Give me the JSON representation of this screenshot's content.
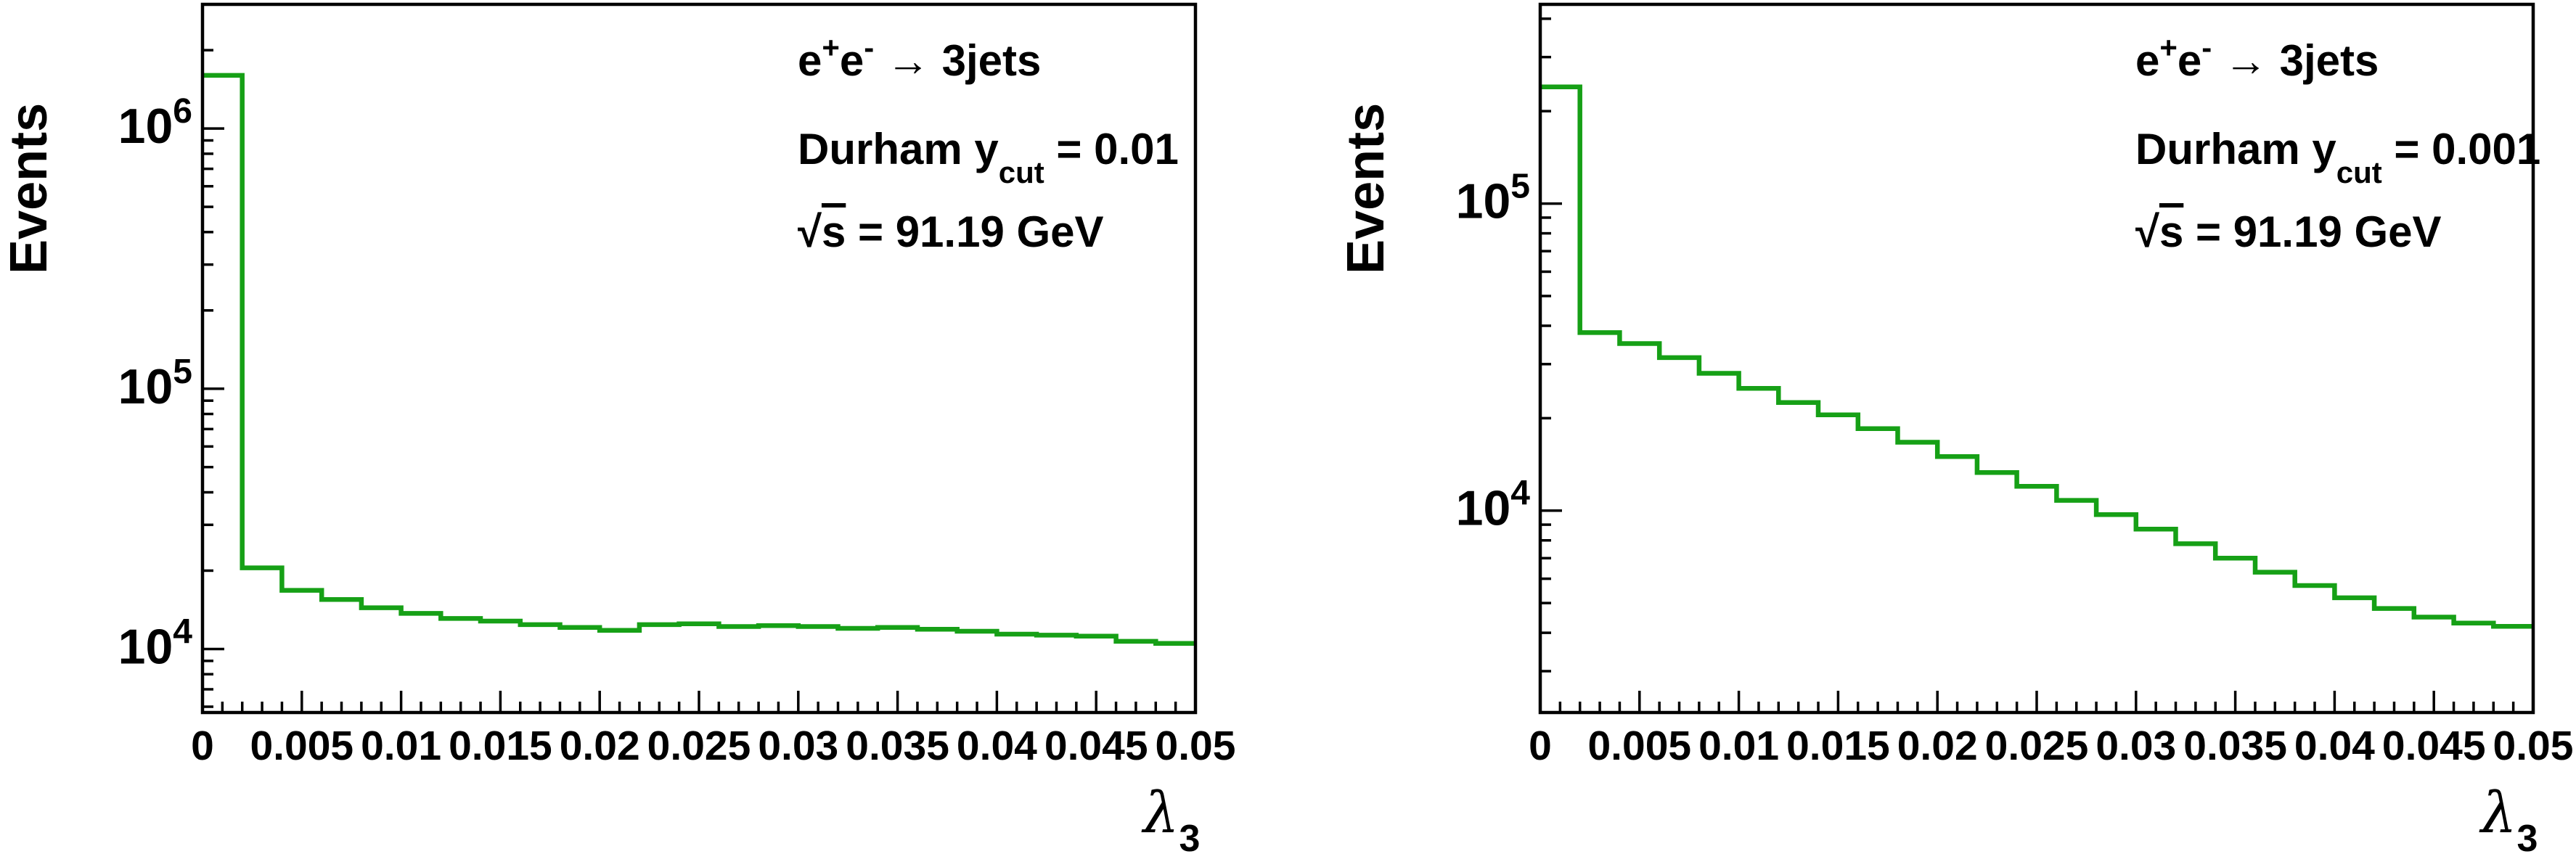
{
  "figure": {
    "background": "#ffffff",
    "text_color": "#000000",
    "line_color": "#16a016"
  },
  "chart_data": [
    {
      "type": "histogram-step",
      "title": "",
      "ylabel": "Events",
      "xlabel": "lambda_3",
      "y_scale": "log",
      "x_range": [
        0,
        0.05
      ],
      "y_range": [
        5700,
        3000000
      ],
      "bin_width": 0.002,
      "n_bins": 25,
      "grid": false,
      "legend": "none",
      "line_color": "#16a016",
      "x_tick_step_major": 0.005,
      "x_tick_step_minor": 0.001,
      "x_tick_labels": [
        "0",
        "0.005",
        "0.01",
        "0.015",
        "0.02",
        "0.025",
        "0.03",
        "0.035",
        "0.04",
        "0.045",
        "0.05"
      ],
      "y_tick_exponents": [
        4,
        5,
        6
      ],
      "values": [
        1600000,
        20500,
        16800,
        15500,
        14400,
        13700,
        13100,
        12800,
        12400,
        12100,
        11800,
        12400,
        12500,
        12200,
        12300,
        12200,
        12000,
        12100,
        11900,
        11700,
        11400,
        11300,
        11200,
        10700,
        10500
      ],
      "annotations": [
        "e+e- → 3jets",
        "Durham y_cut = 0.01",
        "√s = 91.19 GeV"
      ],
      "annotation_lines": [
        {
          "parts": [
            {
              "t": "e"
            },
            {
              "t": "+",
              "sup": true
            },
            {
              "t": "e"
            },
            {
              "t": "-",
              "sup": true
            },
            {
              "t": " → 3jets"
            }
          ]
        },
        {
          "parts": [
            {
              "t": "Durham y"
            },
            {
              "t": "cut",
              "sub": true
            },
            {
              "t": " = 0.01"
            }
          ]
        },
        {
          "parts": [
            {
              "t": "√"
            },
            {
              "t": "s",
              "overline": true
            },
            {
              "t": " = 91.19 GeV"
            }
          ]
        }
      ],
      "x_axis_title_parts": [
        {
          "t": "λ",
          "italic": true
        },
        {
          "t": "3",
          "sub": true
        }
      ]
    },
    {
      "type": "histogram-step",
      "title": "",
      "ylabel": "Events",
      "xlabel": "lambda_3",
      "y_scale": "log",
      "x_range": [
        0,
        0.05
      ],
      "y_range": [
        2200,
        445500
      ],
      "bin_width": 0.002,
      "n_bins": 25,
      "grid": false,
      "legend": "none",
      "line_color": "#16a016",
      "x_tick_step_major": 0.005,
      "x_tick_step_minor": 0.001,
      "x_tick_labels": [
        "0",
        "0.005",
        "0.01",
        "0.015",
        "0.02",
        "0.025",
        "0.03",
        "0.035",
        "0.04",
        "0.045",
        "0.05"
      ],
      "y_tick_exponents": [
        4,
        5
      ],
      "values": [
        240000,
        38000,
        35000,
        31500,
        28000,
        25000,
        22500,
        20500,
        18500,
        16700,
        15000,
        13300,
        12000,
        10800,
        9700,
        8700,
        7800,
        7000,
        6300,
        5700,
        5200,
        4800,
        4500,
        4300,
        4200
      ],
      "annotations": [
        "e+e- → 3jets",
        "Durham y_cut = 0.001",
        "√s = 91.19 GeV"
      ],
      "annotation_lines": [
        {
          "parts": [
            {
              "t": "e"
            },
            {
              "t": "+",
              "sup": true
            },
            {
              "t": "e"
            },
            {
              "t": "-",
              "sup": true
            },
            {
              "t": " → 3jets"
            }
          ]
        },
        {
          "parts": [
            {
              "t": "Durham y"
            },
            {
              "t": "cut",
              "sub": true
            },
            {
              "t": " = 0.001"
            }
          ]
        },
        {
          "parts": [
            {
              "t": "√"
            },
            {
              "t": "s",
              "overline": true
            },
            {
              "t": " = 91.19 GeV"
            }
          ]
        }
      ],
      "x_axis_title_parts": [
        {
          "t": "λ",
          "italic": true
        },
        {
          "t": "3",
          "sub": true
        }
      ]
    }
  ]
}
